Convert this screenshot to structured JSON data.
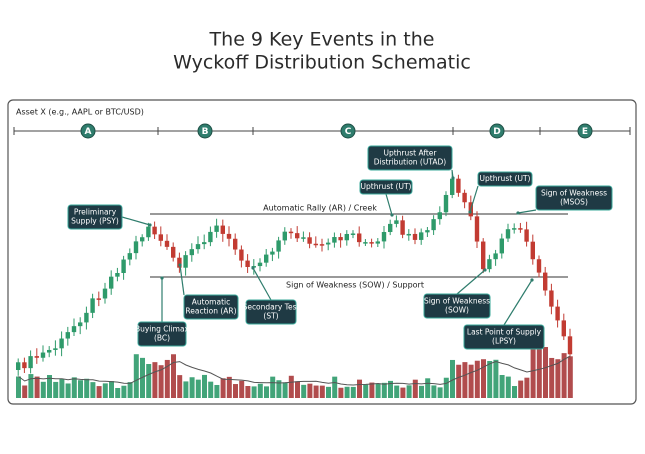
{
  "title": [
    "The 9 Key Events in the",
    "Wyckoff Distribution Schematic"
  ],
  "asset_label": "Asset X (e.g., AAPL or BTC/USD)",
  "phases": [
    "A",
    "B",
    "C",
    "D",
    "E"
  ],
  "levels": {
    "creek": "Automatic Rally (AR) / Creek",
    "support": "Sign of Weakness (SOW) / Support"
  },
  "events": [
    {
      "label": [
        "Preliminary",
        "Supply (PSY)"
      ]
    },
    {
      "label": [
        "Buying Climax",
        "(BC)"
      ]
    },
    {
      "label": [
        "Automatic",
        "Reaction (AR)"
      ]
    },
    {
      "label": [
        "Secondary Test",
        "(ST)"
      ]
    },
    {
      "label": [
        "Upthrust (UT)"
      ]
    },
    {
      "label": [
        "Upthrust After",
        "Distribution (UTAD)"
      ]
    },
    {
      "label": [
        "Upthrust (UT)"
      ]
    },
    {
      "label": [
        "Sign of Weakness",
        "(MSOS)"
      ]
    },
    {
      "label": [
        "Sign of Weakness",
        "(SOW)"
      ]
    },
    {
      "label": [
        "Last Point of Supply",
        "(LPSY)"
      ]
    }
  ]
}
